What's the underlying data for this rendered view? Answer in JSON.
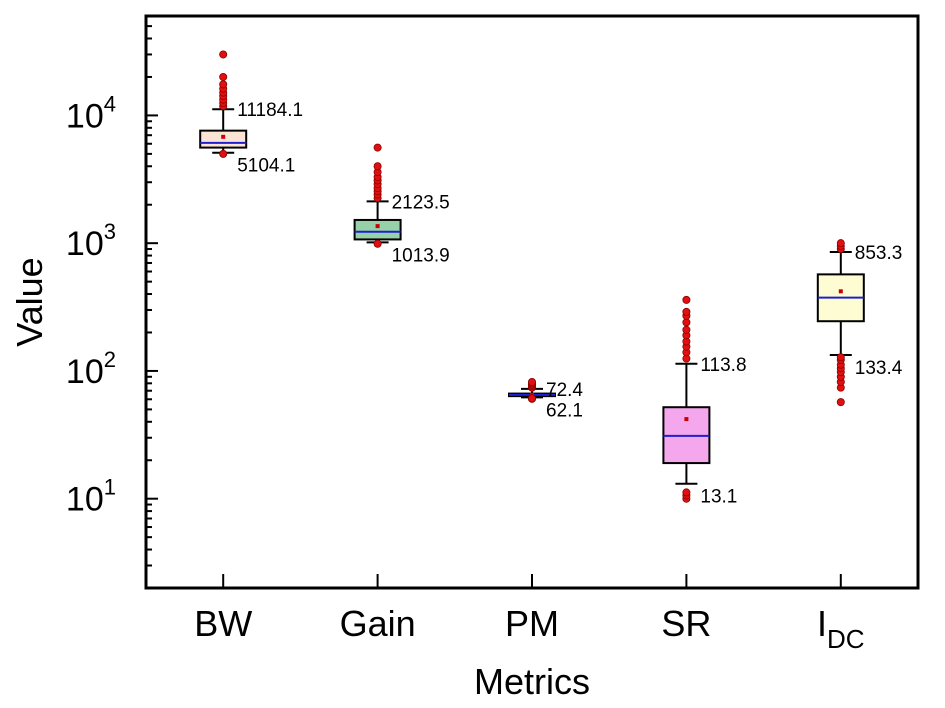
{
  "chart_data": {
    "type": "boxplot",
    "xlabel": "Metrics",
    "ylabel": "Value",
    "yscale": "log",
    "ylim": [
      2,
      60000
    ],
    "yticks": [
      {
        "value": 10,
        "base": "10",
        "exp": "1"
      },
      {
        "value": 100,
        "base": "10",
        "exp": "2"
      },
      {
        "value": 1000,
        "base": "10",
        "exp": "3"
      },
      {
        "value": 10000,
        "base": "10",
        "exp": "4"
      }
    ],
    "categories": [
      {
        "label": "BW",
        "sub": ""
      },
      {
        "label": "Gain",
        "sub": ""
      },
      {
        "label": "PM",
        "sub": ""
      },
      {
        "label": "SR",
        "sub": ""
      },
      {
        "label": "I",
        "sub": "DC"
      }
    ],
    "series": [
      {
        "name": "BW",
        "color": "#fbe3d6",
        "q1": 5600,
        "median": 6100,
        "q3": 7600,
        "mean": 6800,
        "whisker_low": 5104.1,
        "whisker_high": 11184.1,
        "label_low": "5104.1",
        "label_high": "11184.1",
        "outliers": [
          5000,
          11800,
          12500,
          13300,
          14200,
          15100,
          16200,
          17500,
          20000,
          30000
        ]
      },
      {
        "name": "Gain",
        "color": "#97d1a8",
        "q1": 1070,
        "median": 1230,
        "q3": 1520,
        "mean": 1360,
        "whisker_low": 1013.9,
        "whisker_high": 2123.5,
        "label_low": "1013.9",
        "label_high": "2123.5",
        "outliers": [
          990,
          2250,
          2400,
          2550,
          2700,
          2900,
          3100,
          3300,
          3600,
          4000,
          5600
        ]
      },
      {
        "name": "PM",
        "color": "#fbe3d6",
        "q1": 63.5,
        "median": 65,
        "q3": 66.5,
        "mean": 65,
        "whisker_low": 62.1,
        "whisker_high": 72.4,
        "label_low": "62.1",
        "label_high": "72.4",
        "outliers": [
          60.5,
          61,
          74,
          76,
          78,
          80,
          82
        ]
      },
      {
        "name": "SR",
        "color": "#f4a7ec",
        "q1": 19,
        "median": 31,
        "q3": 52,
        "mean": 42,
        "whisker_low": 13.1,
        "whisker_high": 113.8,
        "label_low": "13.1",
        "label_high": "113.8",
        "outliers": [
          10,
          10.6,
          11.2,
          125,
          140,
          155,
          170,
          190,
          210,
          240,
          270,
          290,
          360
        ]
      },
      {
        "name": "I_DC",
        "color": "#fdfcd2",
        "q1": 245,
        "median": 375,
        "q3": 570,
        "mean": 420,
        "whisker_low": 133.4,
        "whisker_high": 853.3,
        "label_low": "133.4",
        "label_high": "853.3",
        "outliers": [
          57,
          74,
          82,
          90,
          98,
          105,
          112,
          122,
          128,
          900,
          950,
          1000
        ]
      }
    ]
  }
}
